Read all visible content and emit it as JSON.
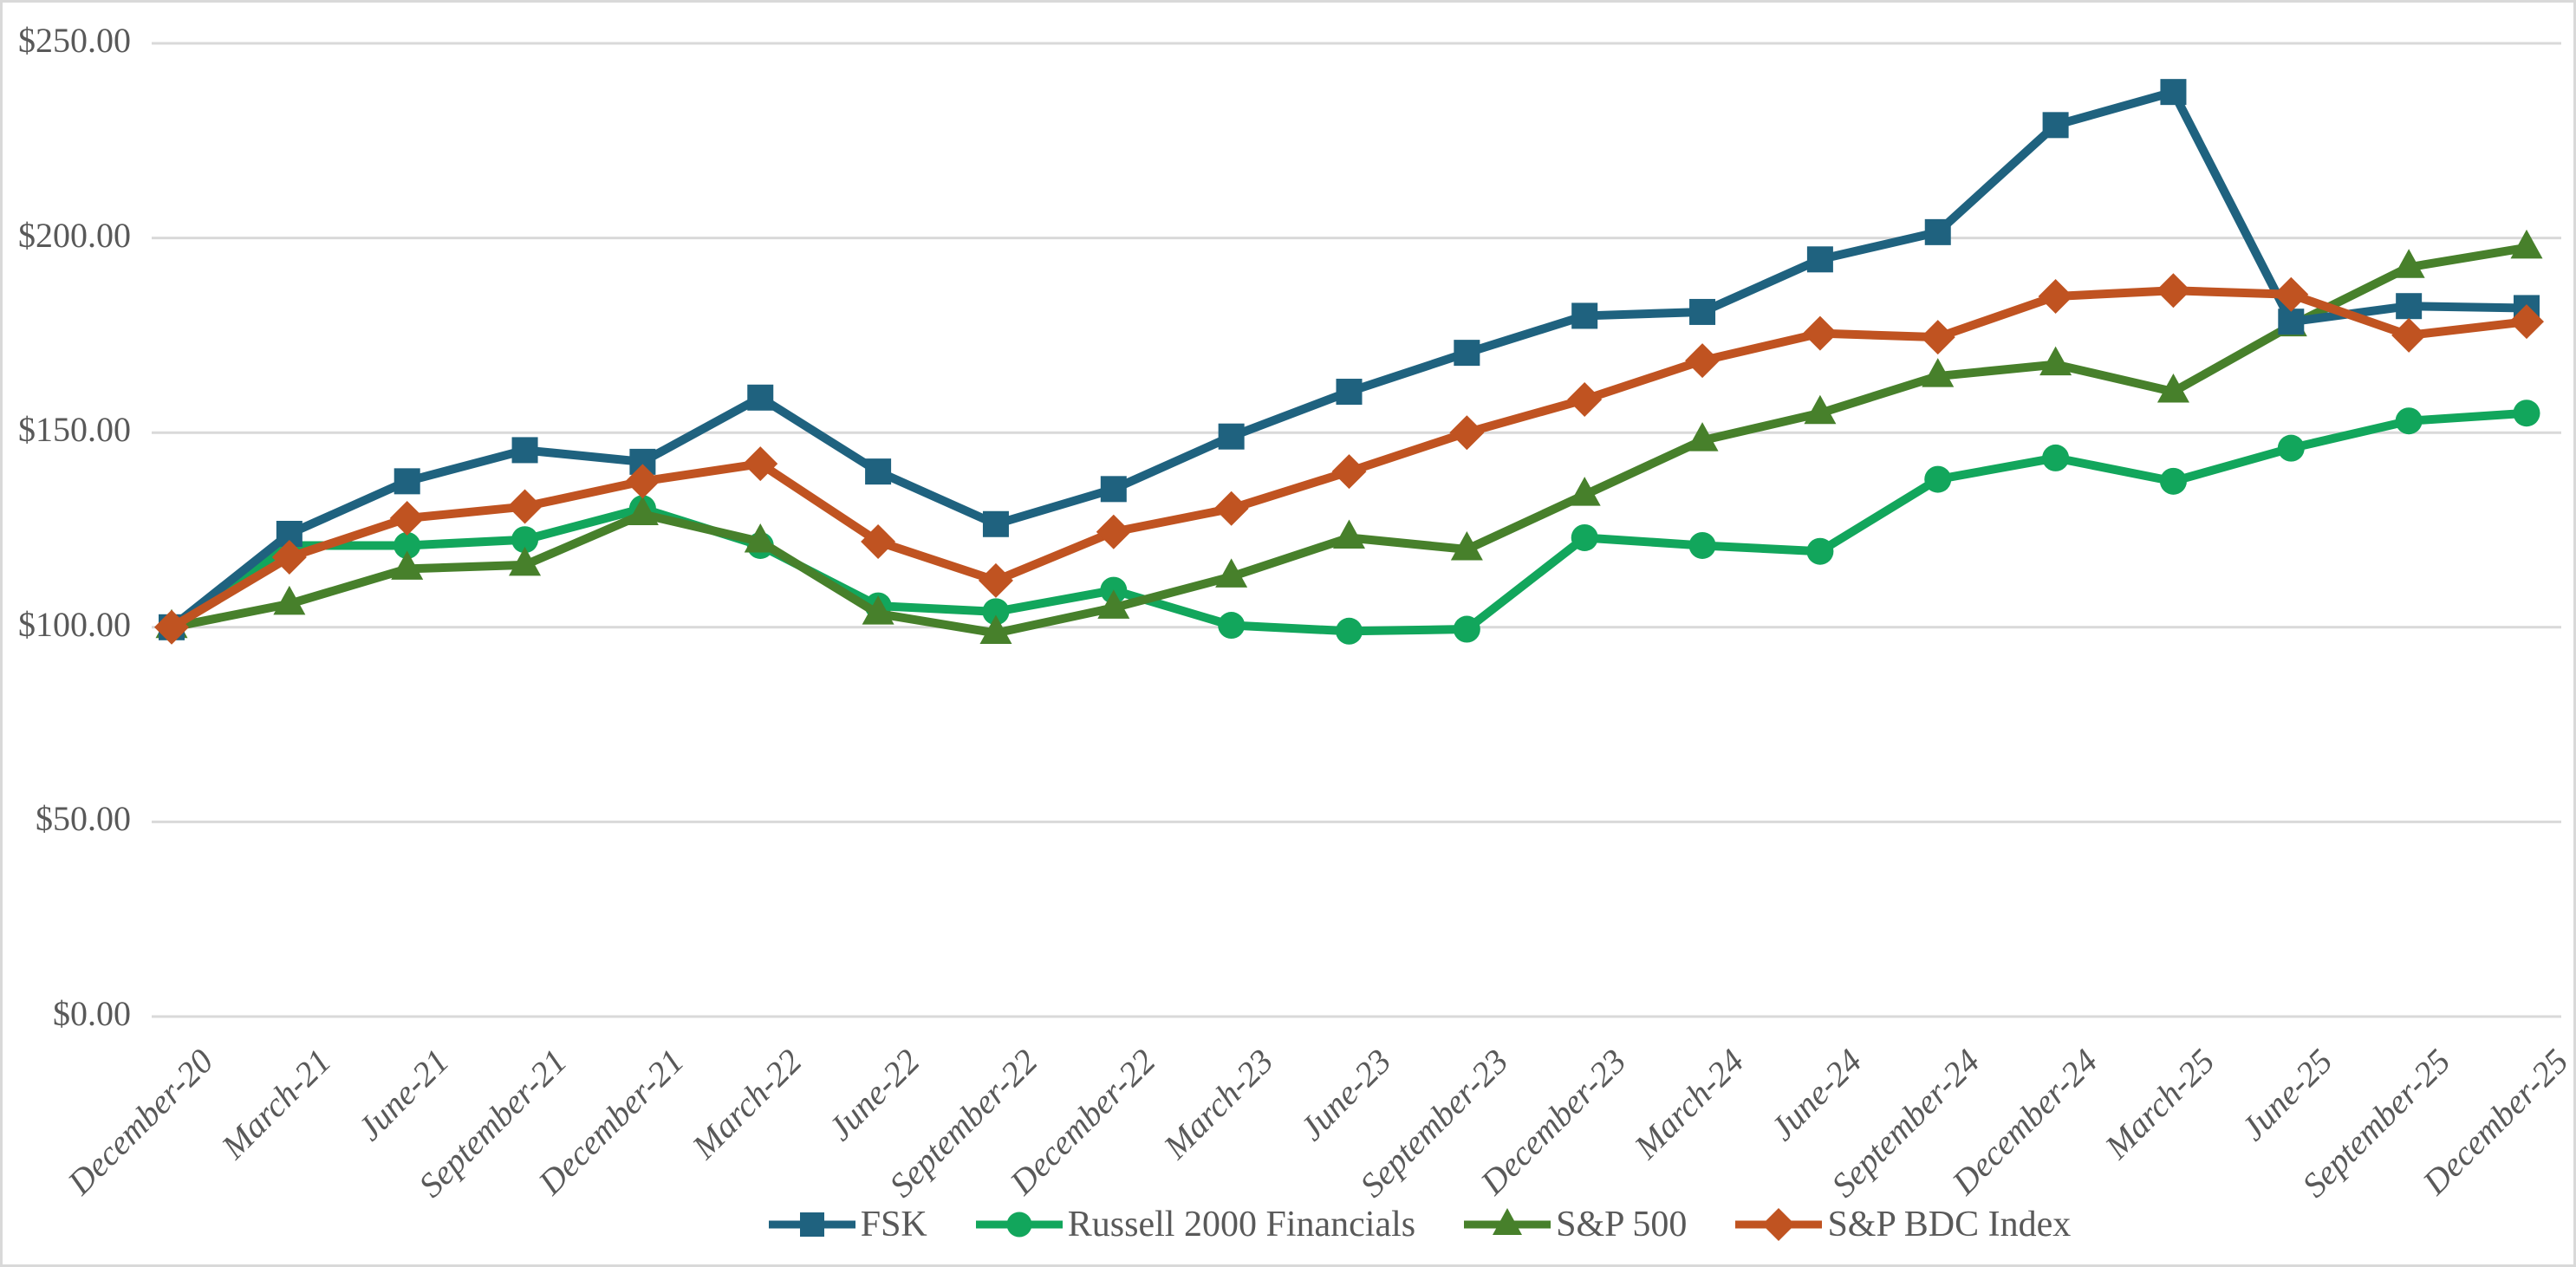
{
  "chart_data": {
    "type": "line",
    "title": "",
    "xlabel": "",
    "ylabel": "",
    "categories": [
      "December-20",
      "March-21",
      "June-21",
      "September-21",
      "December-21",
      "March-22",
      "June-22",
      "September-22",
      "December-22",
      "March-23",
      "June-23",
      "September-23",
      "December-23",
      "March-24",
      "June-24",
      "September-24",
      "December-24",
      "March-25",
      "June-25",
      "September-25",
      "December-25"
    ],
    "series": [
      {
        "name": "FSK",
        "marker": "square",
        "color": "#1F627F",
        "values": [
          100,
          124,
          137.5,
          145.5,
          142.5,
          159,
          140,
          126.5,
          135.5,
          149,
          160.5,
          170.5,
          180,
          181,
          194.5,
          201.5,
          229,
          237.5,
          178.5,
          182.5,
          182
        ]
      },
      {
        "name": "Russell 2000 Financials",
        "marker": "circle",
        "color": "#12A65C",
        "values": [
          100,
          121,
          121,
          122.5,
          130.5,
          121,
          105.5,
          104,
          109.5,
          100.5,
          99,
          99.5,
          123,
          121,
          119.5,
          138,
          143.5,
          137.5,
          146,
          153,
          155
        ]
      },
      {
        "name": "S&P 500",
        "marker": "triangle",
        "color": "#47802B",
        "values": [
          100,
          106,
          115,
          116,
          129,
          122,
          103.5,
          98.5,
          105,
          113,
          123,
          120,
          134,
          148,
          155,
          164.5,
          167.5,
          160.5,
          177.5,
          192.5,
          197.5
        ]
      },
      {
        "name": "S&P BDC Index",
        "marker": "diamond",
        "color": "#C05321",
        "values": [
          100,
          118,
          128,
          131,
          137.5,
          142,
          122,
          112,
          124.5,
          130.5,
          140,
          150,
          158.5,
          168.5,
          175.5,
          174.5,
          185,
          186.5,
          185.5,
          175,
          178.5
        ]
      }
    ],
    "draw_order": [
      1,
      2,
      0,
      3
    ],
    "y_ticks": [
      {
        "label": "$250.00",
        "value": 250
      },
      {
        "label": "$200.00",
        "value": 200
      },
      {
        "label": "$150.00",
        "value": 150
      },
      {
        "label": "$100.00",
        "value": 100
      },
      {
        "label": "$50.00",
        "value": 50
      },
      {
        "label": "$0.00",
        "value": 0
      }
    ],
    "ylim": [
      0,
      250
    ],
    "grid": true,
    "legend_position": "bottom",
    "colors": {
      "grid": "#D9D9D9",
      "axis_text": "#595959",
      "frame": "#D9D9D9",
      "background": "#FFFFFF"
    }
  }
}
